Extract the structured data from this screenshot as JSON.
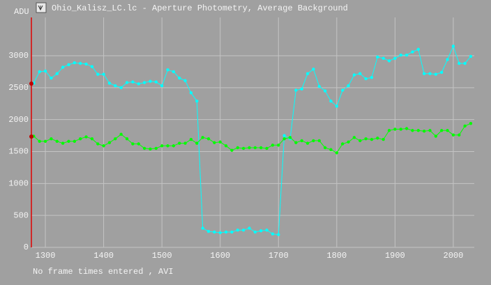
{
  "chart_data": {
    "type": "line",
    "title": "Ohio_Kalisz_LC.lc - Aperture Photometry, Average Background",
    "y_label": "ADU",
    "footer": "No frame times entered , AVI",
    "x": [
      1280,
      1290,
      1300,
      1310,
      1320,
      1330,
      1340,
      1350,
      1360,
      1370,
      1380,
      1390,
      1400,
      1410,
      1420,
      1430,
      1440,
      1450,
      1460,
      1470,
      1480,
      1490,
      1500,
      1510,
      1520,
      1530,
      1540,
      1550,
      1560,
      1570,
      1580,
      1590,
      1600,
      1610,
      1620,
      1630,
      1640,
      1650,
      1660,
      1670,
      1680,
      1690,
      1700,
      1710,
      1720,
      1730,
      1740,
      1750,
      1760,
      1770,
      1780,
      1790,
      1800,
      1810,
      1820,
      1830,
      1840,
      1850,
      1860,
      1870,
      1880,
      1890,
      1900,
      1910,
      1920,
      1930,
      1940,
      1950,
      1960,
      1970,
      1980,
      1990,
      2000,
      2010,
      2020,
      2030
    ],
    "series": [
      {
        "color": "#00ffff",
        "values": [
          2570,
          2750,
          2760,
          2650,
          2720,
          2820,
          2860,
          2890,
          2880,
          2870,
          2830,
          2710,
          2710,
          2570,
          2530,
          2500,
          2580,
          2590,
          2560,
          2580,
          2600,
          2590,
          2530,
          2780,
          2750,
          2650,
          2610,
          2420,
          2290,
          300,
          250,
          240,
          230,
          240,
          240,
          270,
          270,
          300,
          240,
          260,
          270,
          210,
          200,
          1750,
          1700,
          2460,
          2480,
          2720,
          2790,
          2520,
          2450,
          2290,
          2210,
          2460,
          2530,
          2700,
          2720,
          2640,
          2660,
          2980,
          2960,
          2920,
          2960,
          3010,
          3010,
          3060,
          3100,
          2720,
          2720,
          2710,
          2740,
          2940,
          3150,
          2880,
          2880,
          2990
        ]
      },
      {
        "color": "#00ff00",
        "values": [
          1740,
          1660,
          1660,
          1700,
          1660,
          1630,
          1660,
          1660,
          1700,
          1730,
          1700,
          1620,
          1590,
          1640,
          1700,
          1770,
          1700,
          1620,
          1620,
          1550,
          1540,
          1550,
          1590,
          1590,
          1590,
          1630,
          1630,
          1690,
          1630,
          1720,
          1700,
          1640,
          1650,
          1590,
          1520,
          1560,
          1550,
          1560,
          1560,
          1560,
          1550,
          1600,
          1600,
          1700,
          1720,
          1640,
          1670,
          1630,
          1670,
          1670,
          1560,
          1530,
          1480,
          1620,
          1650,
          1720,
          1670,
          1700,
          1690,
          1710,
          1690,
          1830,
          1850,
          1850,
          1860,
          1830,
          1830,
          1820,
          1830,
          1740,
          1830,
          1830,
          1760,
          1760,
          1900,
          1940
        ]
      }
    ],
    "xlim": [
      1276,
      2036
    ],
    "ylim": [
      0,
      3600
    ],
    "xticks": [
      1300,
      1400,
      1500,
      1600,
      1700,
      1800,
      1900,
      2000
    ],
    "yticks": [
      0,
      500,
      1000,
      1500,
      2000,
      2500,
      3000
    ],
    "grid": true
  }
}
